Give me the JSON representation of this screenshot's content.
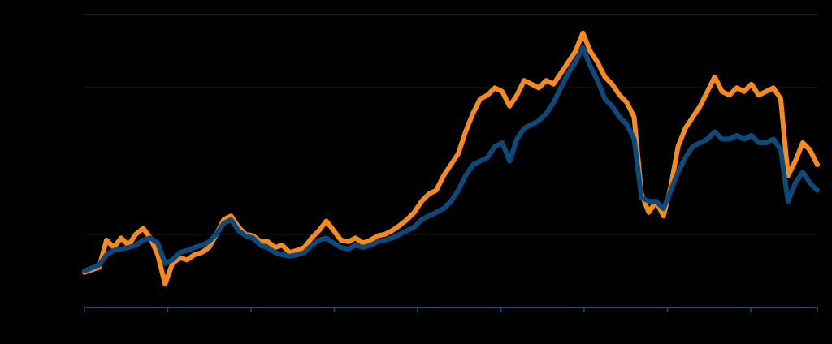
{
  "chart_data": {
    "type": "line",
    "title": "",
    "xlabel": "",
    "ylabel": "",
    "xlim": [
      0,
      100
    ],
    "ylim": [
      0,
      4
    ],
    "x_ticks": [
      0,
      11.36,
      22.73,
      34.09,
      45.45,
      56.82,
      68.18,
      79.55,
      90.91,
      100
    ],
    "y_gridlines": [
      1,
      2,
      3,
      4
    ],
    "grid": true,
    "legend": "none",
    "colors": {
      "background": "#000000",
      "grid": "#3a3a3a",
      "axis": "#1f4e79"
    },
    "series": [
      {
        "color": "#f58b1f",
        "points": [
          [
            0,
            0.48
          ],
          [
            2,
            0.55
          ],
          [
            3,
            0.92
          ],
          [
            4,
            0.82
          ],
          [
            5,
            0.95
          ],
          [
            6,
            0.85
          ],
          [
            7,
            1.0
          ],
          [
            8,
            1.08
          ],
          [
            9,
            0.95
          ],
          [
            10,
            0.72
          ],
          [
            11,
            0.32
          ],
          [
            12,
            0.6
          ],
          [
            13,
            0.68
          ],
          [
            14,
            0.65
          ],
          [
            15,
            0.72
          ],
          [
            16,
            0.75
          ],
          [
            17,
            0.82
          ],
          [
            18,
            1.0
          ],
          [
            19,
            1.2
          ],
          [
            20,
            1.25
          ],
          [
            21,
            1.1
          ],
          [
            22,
            1.0
          ],
          [
            23,
            0.98
          ],
          [
            24,
            0.9
          ],
          [
            25,
            0.9
          ],
          [
            26,
            0.82
          ],
          [
            27,
            0.85
          ],
          [
            28,
            0.75
          ],
          [
            29,
            0.78
          ],
          [
            30,
            0.82
          ],
          [
            31,
            0.95
          ],
          [
            32,
            1.05
          ],
          [
            33,
            1.18
          ],
          [
            34,
            1.05
          ],
          [
            35,
            0.92
          ],
          [
            36,
            0.9
          ],
          [
            37,
            0.95
          ],
          [
            38,
            0.88
          ],
          [
            39,
            0.92
          ],
          [
            40,
            0.98
          ],
          [
            41,
            1.0
          ],
          [
            42,
            1.05
          ],
          [
            43,
            1.12
          ],
          [
            44,
            1.2
          ],
          [
            45,
            1.3
          ],
          [
            46,
            1.45
          ],
          [
            47,
            1.55
          ],
          [
            48,
            1.6
          ],
          [
            49,
            1.8
          ],
          [
            50,
            1.95
          ],
          [
            51,
            2.1
          ],
          [
            52,
            2.4
          ],
          [
            53,
            2.65
          ],
          [
            54,
            2.85
          ],
          [
            55,
            2.9
          ],
          [
            56,
            3.0
          ],
          [
            57,
            2.95
          ],
          [
            58,
            2.75
          ],
          [
            59,
            2.9
          ],
          [
            60,
            3.1
          ],
          [
            61,
            3.05
          ],
          [
            62,
            3.0
          ],
          [
            63,
            3.1
          ],
          [
            64,
            3.05
          ],
          [
            65,
            3.2
          ],
          [
            66,
            3.35
          ],
          [
            67,
            3.5
          ],
          [
            68,
            3.75
          ],
          [
            69,
            3.5
          ],
          [
            70,
            3.35
          ],
          [
            71,
            3.15
          ],
          [
            72,
            3.05
          ],
          [
            73,
            2.9
          ],
          [
            74,
            2.8
          ],
          [
            75,
            2.6
          ],
          [
            76,
            1.55
          ],
          [
            77,
            1.3
          ],
          [
            78,
            1.45
          ],
          [
            79,
            1.25
          ],
          [
            80,
            1.65
          ],
          [
            81,
            2.2
          ],
          [
            82,
            2.45
          ],
          [
            83,
            2.6
          ],
          [
            84,
            2.75
          ],
          [
            85,
            2.95
          ],
          [
            86,
            3.15
          ],
          [
            87,
            2.95
          ],
          [
            88,
            2.9
          ],
          [
            89,
            3.0
          ],
          [
            90,
            2.95
          ],
          [
            91,
            3.05
          ],
          [
            92,
            2.9
          ],
          [
            93,
            2.95
          ],
          [
            94,
            3.0
          ],
          [
            95,
            2.85
          ],
          [
            96,
            1.8
          ],
          [
            97,
            2.0
          ],
          [
            98,
            2.25
          ],
          [
            99,
            2.15
          ],
          [
            100,
            1.95
          ]
        ]
      },
      {
        "color": "#0b4a7a",
        "points": [
          [
            0,
            0.5
          ],
          [
            2,
            0.58
          ],
          [
            3,
            0.72
          ],
          [
            4,
            0.78
          ],
          [
            5,
            0.8
          ],
          [
            6,
            0.82
          ],
          [
            7,
            0.85
          ],
          [
            8,
            0.92
          ],
          [
            9,
            0.95
          ],
          [
            10,
            0.88
          ],
          [
            11,
            0.6
          ],
          [
            12,
            0.65
          ],
          [
            13,
            0.75
          ],
          [
            14,
            0.78
          ],
          [
            15,
            0.82
          ],
          [
            16,
            0.85
          ],
          [
            17,
            0.9
          ],
          [
            18,
            1.0
          ],
          [
            19,
            1.15
          ],
          [
            20,
            1.2
          ],
          [
            21,
            1.05
          ],
          [
            22,
            0.98
          ],
          [
            23,
            0.95
          ],
          [
            24,
            0.85
          ],
          [
            25,
            0.82
          ],
          [
            26,
            0.75
          ],
          [
            27,
            0.72
          ],
          [
            28,
            0.7
          ],
          [
            29,
            0.72
          ],
          [
            30,
            0.75
          ],
          [
            31,
            0.85
          ],
          [
            32,
            0.92
          ],
          [
            33,
            0.95
          ],
          [
            34,
            0.88
          ],
          [
            35,
            0.82
          ],
          [
            36,
            0.8
          ],
          [
            37,
            0.85
          ],
          [
            38,
            0.82
          ],
          [
            39,
            0.85
          ],
          [
            40,
            0.9
          ],
          [
            41,
            0.92
          ],
          [
            42,
            0.95
          ],
          [
            43,
            1.0
          ],
          [
            44,
            1.05
          ],
          [
            45,
            1.1
          ],
          [
            46,
            1.2
          ],
          [
            47,
            1.25
          ],
          [
            48,
            1.3
          ],
          [
            49,
            1.35
          ],
          [
            50,
            1.45
          ],
          [
            51,
            1.6
          ],
          [
            52,
            1.8
          ],
          [
            53,
            1.95
          ],
          [
            54,
            2.0
          ],
          [
            55,
            2.05
          ],
          [
            56,
            2.2
          ],
          [
            57,
            2.25
          ],
          [
            58,
            2.0
          ],
          [
            59,
            2.3
          ],
          [
            60,
            2.45
          ],
          [
            61,
            2.5
          ],
          [
            62,
            2.55
          ],
          [
            63,
            2.65
          ],
          [
            64,
            2.8
          ],
          [
            65,
            3.0
          ],
          [
            66,
            3.2
          ],
          [
            67,
            3.35
          ],
          [
            68,
            3.55
          ],
          [
            69,
            3.3
          ],
          [
            70,
            3.1
          ],
          [
            71,
            2.85
          ],
          [
            72,
            2.75
          ],
          [
            73,
            2.6
          ],
          [
            74,
            2.5
          ],
          [
            75,
            2.3
          ],
          [
            76,
            1.5
          ],
          [
            77,
            1.45
          ],
          [
            78,
            1.45
          ],
          [
            79,
            1.35
          ],
          [
            80,
            1.6
          ],
          [
            81,
            1.85
          ],
          [
            82,
            2.05
          ],
          [
            83,
            2.2
          ],
          [
            84,
            2.25
          ],
          [
            85,
            2.3
          ],
          [
            86,
            2.4
          ],
          [
            87,
            2.3
          ],
          [
            88,
            2.3
          ],
          [
            89,
            2.35
          ],
          [
            90,
            2.3
          ],
          [
            91,
            2.35
          ],
          [
            92,
            2.25
          ],
          [
            93,
            2.25
          ],
          [
            94,
            2.3
          ],
          [
            95,
            2.15
          ],
          [
            96,
            1.45
          ],
          [
            97,
            1.7
          ],
          [
            98,
            1.85
          ],
          [
            99,
            1.7
          ],
          [
            100,
            1.6
          ]
        ]
      }
    ]
  }
}
